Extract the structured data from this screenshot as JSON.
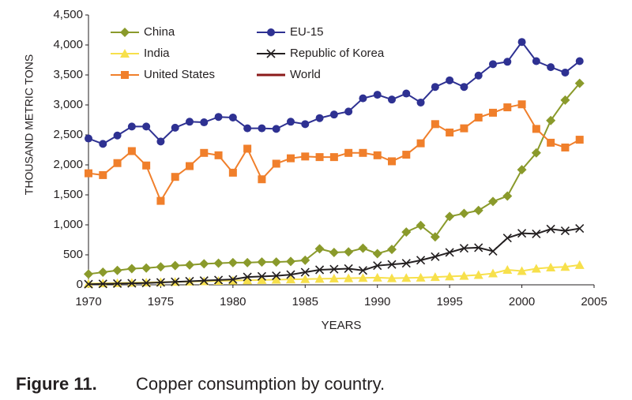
{
  "chart_data": {
    "type": "line",
    "caption_number": "Figure 11.",
    "caption": "Copper consumption by country.",
    "xlabel": "YEARS",
    "ylabel": "THOUSAND METRIC TONS",
    "x": [
      1970,
      1971,
      1972,
      1973,
      1974,
      1975,
      1976,
      1977,
      1978,
      1979,
      1980,
      1981,
      1982,
      1983,
      1984,
      1985,
      1986,
      1987,
      1988,
      1989,
      1990,
      1991,
      1992,
      1993,
      1994,
      1995,
      1996,
      1997,
      1998,
      1999,
      2000,
      2001,
      2002,
      2003,
      2004
    ],
    "xlim": [
      1970,
      2005
    ],
    "xticks": [
      1970,
      1975,
      1980,
      1985,
      1990,
      1995,
      2000,
      2005
    ],
    "ylim": [
      0,
      4500
    ],
    "yticks": [
      0,
      500,
      {
        "value": 1000,
        "label": "1,000"
      },
      {
        "value": 1500,
        "label": "1,500"
      },
      {
        "value": 2000,
        "label": "2,000"
      },
      {
        "value": 2500,
        "label": "2,500"
      },
      {
        "value": 3000,
        "label": "3,000"
      },
      {
        "value": 3500,
        "label": "3,500"
      },
      {
        "value": 4000,
        "label": "4,000"
      },
      {
        "value": 4500,
        "label": "4,500"
      }
    ],
    "grid": false,
    "legend": "top-left",
    "series": [
      {
        "name": "China",
        "color": "#8a9a2b",
        "marker": "diamond",
        "values": [
          180,
          210,
          240,
          270,
          280,
          300,
          320,
          330,
          350,
          360,
          370,
          370,
          380,
          380,
          390,
          410,
          600,
          540,
          550,
          610,
          520,
          590,
          880,
          990,
          800,
          1140,
          1190,
          1240,
          1390,
          1480,
          1920,
          2200,
          2740,
          3080,
          3360
        ]
      },
      {
        "name": "EU-15",
        "color": "#2e3192",
        "marker": "circle",
        "values": [
          2440,
          2350,
          2490,
          2640,
          2640,
          2390,
          2620,
          2720,
          2710,
          2800,
          2790,
          2610,
          2610,
          2600,
          2720,
          2680,
          2780,
          2840,
          2890,
          3110,
          3170,
          3090,
          3190,
          3040,
          3300,
          3410,
          3300,
          3490,
          3680,
          3720,
          4050,
          3730,
          3630,
          3540,
          3730
        ]
      },
      {
        "name": "India",
        "color": "#f7e04b",
        "marker": "triangle",
        "values": [
          20,
          25,
          30,
          35,
          40,
          45,
          50,
          55,
          60,
          65,
          70,
          75,
          80,
          85,
          90,
          95,
          100,
          105,
          110,
          115,
          120,
          110,
          115,
          120,
          130,
          140,
          150,
          165,
          190,
          250,
          230,
          270,
          290,
          300,
          330
        ]
      },
      {
        "name": "Republic of Korea",
        "color": "#231f20",
        "marker": "x",
        "values": [
          10,
          15,
          20,
          25,
          30,
          40,
          50,
          60,
          70,
          80,
          90,
          130,
          140,
          150,
          170,
          210,
          250,
          260,
          270,
          240,
          320,
          340,
          360,
          410,
          470,
          540,
          610,
          620,
          560,
          780,
          860,
          850,
          930,
          900,
          940
        ]
      },
      {
        "name": "United States",
        "color": "#f07f2b",
        "marker": "square",
        "values": [
          1860,
          1830,
          2030,
          2230,
          1990,
          1400,
          1800,
          1980,
          2200,
          2160,
          1870,
          2270,
          1760,
          2020,
          2110,
          2140,
          2130,
          2130,
          2200,
          2200,
          2160,
          2060,
          2170,
          2360,
          2680,
          2540,
          2610,
          2790,
          2870,
          2960,
          3010,
          2600,
          2370,
          2290,
          2420
        ]
      },
      {
        "name": "World",
        "color": "#8b1a1a",
        "marker": "none",
        "values": [
          null,
          null,
          null,
          null,
          null,
          null,
          null,
          null,
          null,
          null,
          null,
          null,
          null,
          null,
          null,
          null,
          null,
          null,
          null,
          null,
          null,
          null,
          null,
          null,
          null,
          null,
          null,
          null,
          null,
          null,
          null,
          null,
          null,
          null,
          null
        ]
      }
    ]
  }
}
